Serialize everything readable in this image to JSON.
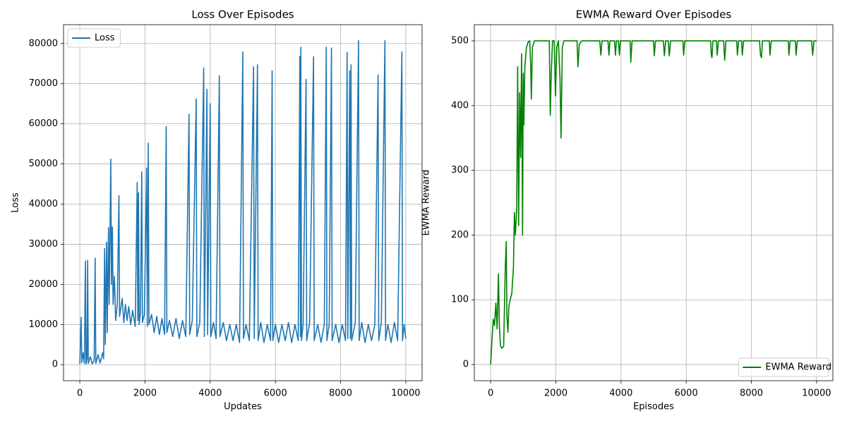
{
  "chart_data": [
    {
      "type": "line",
      "title": "Loss Over Episodes",
      "xlabel": "Updates",
      "ylabel": "Loss",
      "xlim": [
        -500,
        10500
      ],
      "ylim": [
        -4000,
        84700
      ],
      "xticks": [
        0,
        2000,
        4000,
        6000,
        8000,
        10000
      ],
      "yticks": [
        0,
        10000,
        20000,
        30000,
        40000,
        50000,
        60000,
        70000,
        80000
      ],
      "grid": true,
      "legend": "upper left",
      "x": [
        0,
        40,
        60,
        100,
        140,
        170,
        190,
        220,
        240,
        260,
        320,
        380,
        440,
        470,
        490,
        560,
        620,
        700,
        730,
        760,
        780,
        820,
        840,
        880,
        900,
        920,
        950,
        970,
        1000,
        1020,
        1060,
        1100,
        1150,
        1200,
        1220,
        1300,
        1350,
        1400,
        1450,
        1500,
        1560,
        1620,
        1700,
        1760,
        1780,
        1800,
        1820,
        1860,
        1900,
        1920,
        1980,
        2050,
        2070,
        2100,
        2120,
        2200,
        2280,
        2360,
        2440,
        2520,
        2600,
        2650,
        2670,
        2750,
        2850,
        2950,
        3050,
        3150,
        3250,
        3350,
        3370,
        3450,
        3570,
        3590,
        3680,
        3800,
        3820,
        3900,
        3920,
        4000,
        4020,
        4100,
        4180,
        4280,
        4300,
        4400,
        4500,
        4600,
        4700,
        4800,
        4900,
        5000,
        5020,
        5100,
        5200,
        5330,
        5350,
        5450,
        5470,
        5550,
        5650,
        5750,
        5850,
        5900,
        5920,
        6000,
        6100,
        6200,
        6300,
        6400,
        6500,
        6600,
        6700,
        6750,
        6770,
        6780,
        6800,
        6850,
        6940,
        6960,
        7050,
        7170,
        7190,
        7300,
        7400,
        7500,
        7560,
        7580,
        7650,
        7720,
        7740,
        7850,
        7950,
        8050,
        8150,
        8200,
        8220,
        8280,
        8300,
        8320,
        8340,
        8450,
        8550,
        8570,
        8650,
        8750,
        8850,
        8950,
        9050,
        9150,
        9170,
        9250,
        9360,
        9380,
        9450,
        9550,
        9650,
        9750,
        9880,
        9900,
        9950,
        9999
      ],
      "series": [
        {
          "name": "Loss",
          "color": "#1f77b4",
          "values": [
            200,
            11800,
            500,
            3000,
            300,
            25800,
            200,
            1500,
            26000,
            300,
            2000,
            200,
            1000,
            26500,
            300,
            2500,
            400,
            3000,
            1500,
            28900,
            5000,
            30500,
            8000,
            34200,
            15000,
            28000,
            51200,
            20000,
            34300,
            15000,
            22000,
            11000,
            15000,
            42100,
            12000,
            16500,
            10500,
            15000,
            11000,
            14500,
            10000,
            13500,
            9500,
            45400,
            11000,
            42800,
            10000,
            13000,
            48000,
            10500,
            12500,
            49000,
            9500,
            55200,
            10000,
            12500,
            8000,
            12000,
            7500,
            11500,
            7500,
            59300,
            8000,
            11000,
            7000,
            11500,
            6500,
            11000,
            7000,
            62400,
            7500,
            11000,
            66200,
            7000,
            10500,
            73900,
            7000,
            68600,
            7500,
            65000,
            7000,
            10500,
            6500,
            72000,
            7000,
            10500,
            6000,
            10000,
            6000,
            10000,
            5500,
            77900,
            6500,
            10000,
            6000,
            74200,
            6500,
            74700,
            6000,
            10500,
            5500,
            10000,
            6000,
            73200,
            6000,
            10000,
            5500,
            10000,
            6000,
            10500,
            5500,
            10000,
            6000,
            76800,
            7000,
            79100,
            6000,
            10000,
            71100,
            6000,
            10500,
            76700,
            6000,
            10000,
            5500,
            10000,
            79100,
            6000,
            10000,
            78900,
            6000,
            10000,
            5500,
            10000,
            6000,
            77800,
            6500,
            73200,
            6500,
            74700,
            6000,
            10500,
            80700,
            6000,
            10500,
            5500,
            10000,
            6000,
            10000,
            72200,
            6000,
            10500,
            80700,
            6000,
            10000,
            5500,
            10500,
            6000,
            77900,
            6000,
            10000,
            6500
          ]
        }
      ]
    },
    {
      "type": "line",
      "title": "EWMA Reward Over Episodes",
      "xlabel": "Episodes",
      "ylabel": "EWMA Reward",
      "xlim": [
        -500,
        10500
      ],
      "ylim": [
        -25,
        525
      ],
      "xticks": [
        0,
        2000,
        4000,
        6000,
        8000,
        10000
      ],
      "yticks": [
        0,
        100,
        200,
        300,
        400,
        500
      ],
      "grid": true,
      "legend": "lower right",
      "x": [
        0,
        50,
        80,
        120,
        160,
        200,
        240,
        270,
        300,
        340,
        400,
        450,
        480,
        500,
        530,
        560,
        600,
        650,
        700,
        730,
        760,
        800,
        830,
        860,
        890,
        920,
        950,
        980,
        1000,
        1020,
        1050,
        1100,
        1150,
        1200,
        1230,
        1250,
        1280,
        1350,
        1800,
        1830,
        1860,
        1900,
        1950,
        1990,
        2030,
        2080,
        2130,
        2160,
        2200,
        2250,
        2650,
        2680,
        2720,
        2800,
        3350,
        3380,
        3420,
        3600,
        3630,
        3660,
        3800,
        3830,
        3860,
        3920,
        3950,
        3980,
        4280,
        4300,
        4340,
        5000,
        5020,
        5060,
        5300,
        5330,
        5370,
        5450,
        5480,
        5520,
        5900,
        5920,
        5960,
        6750,
        6770,
        6790,
        6820,
        6930,
        6950,
        6990,
        7150,
        7180,
        7220,
        7550,
        7570,
        7610,
        7700,
        7720,
        7760,
        8250,
        8280,
        8310,
        8340,
        8550,
        8570,
        8610,
        9130,
        9150,
        9190,
        9350,
        9370,
        9410,
        9850,
        9880,
        9920,
        9999
      ],
      "series": [
        {
          "name": "EWMA Reward",
          "color": "#008000",
          "values": [
            0,
            45,
            70,
            60,
            95,
            55,
            140,
            60,
            30,
            25,
            28,
            150,
            190,
            75,
            50,
            90,
            100,
            110,
            150,
            235,
            200,
            240,
            460,
            215,
            420,
            320,
            480,
            200,
            450,
            370,
            460,
            490,
            498,
            500,
            460,
            410,
            490,
            500,
            500,
            385,
            450,
            500,
            500,
            415,
            490,
            500,
            440,
            350,
            490,
            500,
            500,
            460,
            495,
            500,
            500,
            478,
            500,
            500,
            478,
            500,
            500,
            478,
            500,
            500,
            478,
            500,
            500,
            467,
            500,
            500,
            477,
            500,
            500,
            477,
            500,
            500,
            477,
            500,
            500,
            478,
            500,
            500,
            478,
            474,
            500,
            500,
            478,
            500,
            500,
            470,
            500,
            500,
            478,
            500,
            500,
            478,
            500,
            500,
            478,
            474,
            500,
            500,
            478,
            500,
            500,
            478,
            500,
            500,
            478,
            500,
            500,
            478,
            500,
            500
          ]
        }
      ]
    }
  ]
}
